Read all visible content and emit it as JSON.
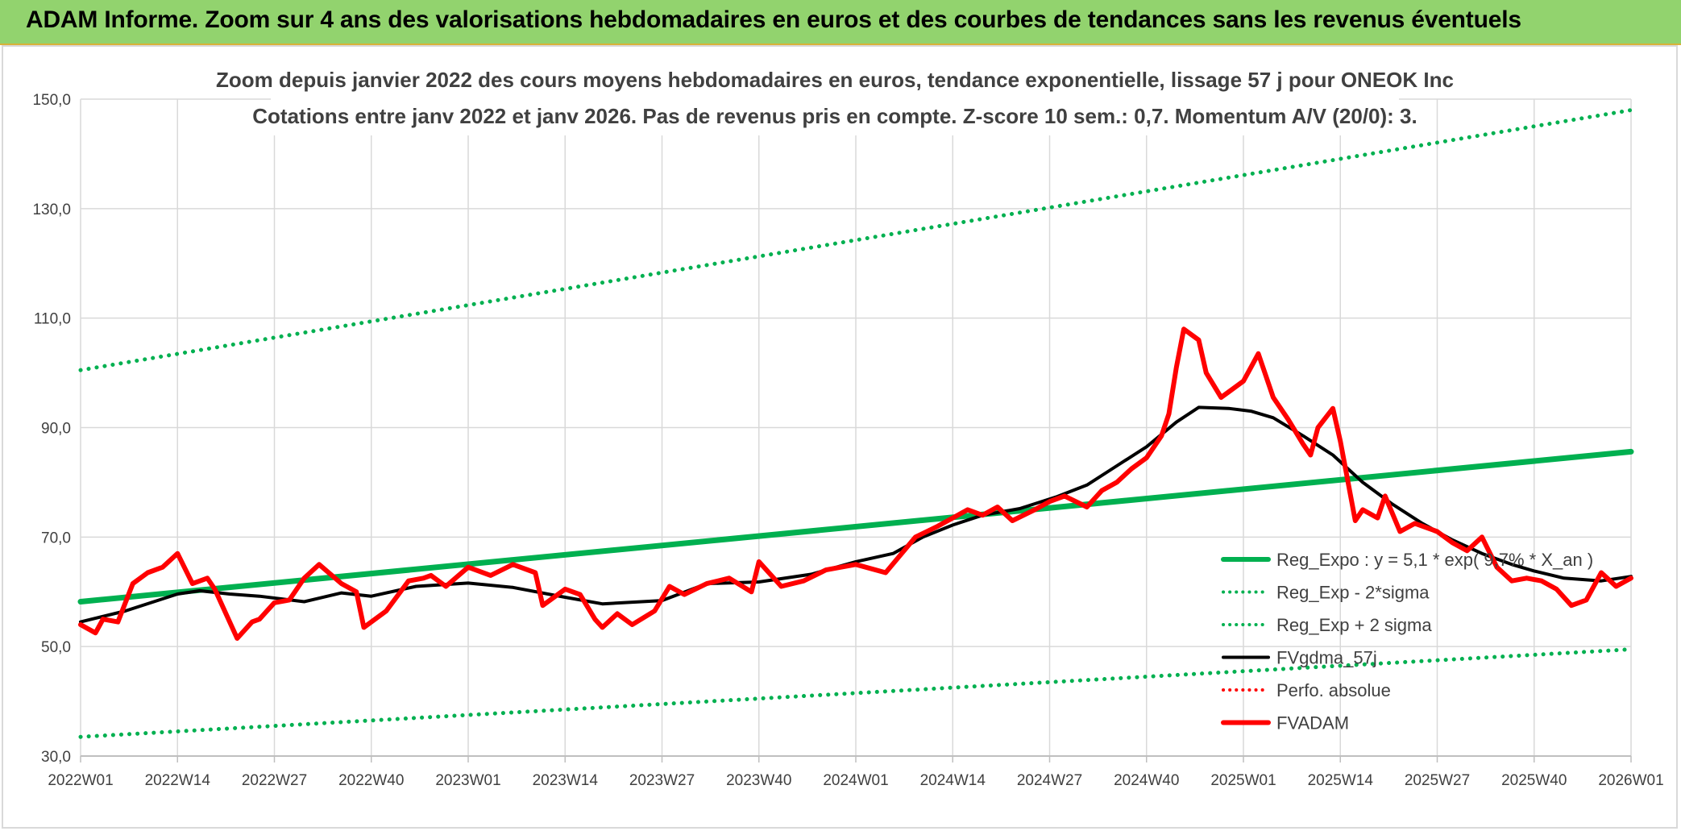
{
  "banner": {
    "title": "ADAM Informe. Zoom sur 4 ans des valorisations hebdomadaires en euros et des courbes de tendances sans les revenus éventuels"
  },
  "chart_data": {
    "type": "line",
    "title": "Zoom depuis janvier 2022 des cours moyens hebdomadaires en euros, tendance exponentielle, lissage 57 j pour ONEOK Inc",
    "subtitle": "Cotations entre janv 2022 et janv 2026. Pas de revenus pris en compte. Z-score 10 sem.: 0,7. Momentum A/V (20/0): 3.",
    "xlabel": "",
    "ylabel": "",
    "ylim": [
      30,
      150
    ],
    "xlim": [
      0,
      208
    ],
    "yticks": [
      "150,0",
      "130,0",
      "110,0",
      "90,0",
      "70,0",
      "50,0",
      "30,0"
    ],
    "ytick_values": [
      150,
      130,
      110,
      90,
      70,
      50,
      30
    ],
    "xticks": [
      "2022W01",
      "2022W14",
      "2022W27",
      "2022W40",
      "2023W01",
      "2023W14",
      "2023W27",
      "2023W40",
      "2024W01",
      "2024W14",
      "2024W27",
      "2024W40",
      "2025W01",
      "2025W14",
      "2025W27",
      "2025W40",
      "2026W01"
    ],
    "xtick_positions": [
      0,
      13,
      26,
      39,
      52,
      65,
      78,
      91,
      104,
      117,
      130,
      143,
      156,
      169,
      182,
      195,
      208
    ],
    "grid": true,
    "legend_position": "bottom-right",
    "colors": {
      "green": "#00b050",
      "black": "#000000",
      "red": "#ff0000",
      "grid": "#d9d9d9"
    },
    "series": [
      {
        "name": "Reg_Expo : y = 5,1 * exp( 9,7% *  X_an )",
        "style": "solid",
        "color": "#00b050",
        "x": [
          0,
          208
        ],
        "y": [
          58.2,
          85.6
        ]
      },
      {
        "name": "Reg_Exp - 2*sigma",
        "style": "dotted",
        "color": "#00b050",
        "x": [
          0,
          208
        ],
        "y": [
          33.5,
          49.5
        ]
      },
      {
        "name": "Reg_Exp + 2 sigma",
        "style": "dotted",
        "color": "#00b050",
        "x": [
          0,
          208
        ],
        "y": [
          100.5,
          148.0
        ]
      },
      {
        "name": "FVgdma_57j",
        "style": "solid",
        "color": "#000000",
        "x": [
          0,
          6,
          13,
          16,
          20,
          24,
          30,
          35,
          39,
          45,
          52,
          58,
          65,
          70,
          78,
          84,
          91,
          98,
          104,
          109,
          113,
          117,
          121,
          126,
          131,
          135,
          139,
          143,
          147,
          150,
          154,
          157,
          160,
          164,
          168,
          172,
          176,
          180,
          184,
          188,
          192,
          195,
          199,
          204,
          208
        ],
        "y": [
          54.5,
          56.5,
          59.6,
          60.2,
          59.6,
          59.2,
          58.2,
          59.8,
          59.2,
          61.0,
          61.6,
          60.8,
          59.0,
          57.8,
          58.4,
          61.5,
          61.8,
          63.2,
          65.5,
          67.0,
          70.0,
          72.2,
          74.0,
          75.2,
          77.4,
          79.5,
          83.0,
          86.5,
          91.0,
          93.7,
          93.5,
          93.0,
          91.8,
          88.5,
          85.0,
          80.0,
          76.0,
          72.5,
          69.5,
          67.0,
          65.0,
          63.8,
          62.5,
          62.0,
          62.8
        ]
      },
      {
        "name": "Perfo. absolue",
        "style": "dotted",
        "color": "#ff0000",
        "x": [],
        "y": []
      },
      {
        "name": "FVADAM",
        "style": "solid",
        "color": "#ff0000",
        "x": [
          0,
          2,
          3,
          5,
          7,
          9,
          11,
          13,
          15,
          17,
          18,
          21,
          23,
          24,
          26,
          28,
          30,
          32,
          35,
          37,
          38,
          41,
          44,
          46,
          47,
          49,
          52,
          55,
          58,
          61,
          62,
          65,
          67,
          69,
          70,
          72,
          74,
          77,
          79,
          81,
          84,
          87,
          90,
          91,
          94,
          97,
          100,
          104,
          108,
          112,
          115,
          117,
          119,
          121,
          123,
          125,
          128,
          130,
          132,
          135,
          137,
          139,
          141,
          143,
          145,
          146,
          147,
          148,
          150,
          151,
          153,
          155,
          156,
          157,
          158,
          160,
          162,
          164,
          165,
          166,
          168,
          169,
          171,
          172,
          174,
          175,
          177,
          179,
          182,
          184,
          186,
          188,
          190,
          192,
          194,
          196,
          198,
          200,
          202,
          204,
          206,
          208
        ],
        "y": [
          54.0,
          52.5,
          55.0,
          54.5,
          61.5,
          63.5,
          64.5,
          67.0,
          61.5,
          62.5,
          60.5,
          51.5,
          54.5,
          55.0,
          58.0,
          58.5,
          62.5,
          65.0,
          61.5,
          60.0,
          53.5,
          56.5,
          62.0,
          62.5,
          63.0,
          61.0,
          64.5,
          63.0,
          65.0,
          63.5,
          57.5,
          60.5,
          59.5,
          55.0,
          53.5,
          56.0,
          54.0,
          56.5,
          61.0,
          59.5,
          61.5,
          62.5,
          60.0,
          65.5,
          61.0,
          62.0,
          64.0,
          65.0,
          63.5,
          70.0,
          72.0,
          73.5,
          75.0,
          74.0,
          75.5,
          73.0,
          75.0,
          76.5,
          77.5,
          75.5,
          78.5,
          80.0,
          82.5,
          84.5,
          88.5,
          92.5,
          101.0,
          108.0,
          106.0,
          100.0,
          95.5,
          97.5,
          98.5,
          101.0,
          103.5,
          95.5,
          91.5,
          87.0,
          85.0,
          90.0,
          93.5,
          87.5,
          73.0,
          75.0,
          73.5,
          77.5,
          71.0,
          72.5,
          71.0,
          69.0,
          67.5,
          70.0,
          64.5,
          62.0,
          62.5,
          62.0,
          60.5,
          57.5,
          58.5,
          63.5,
          61.0,
          62.5
        ]
      }
    ]
  }
}
